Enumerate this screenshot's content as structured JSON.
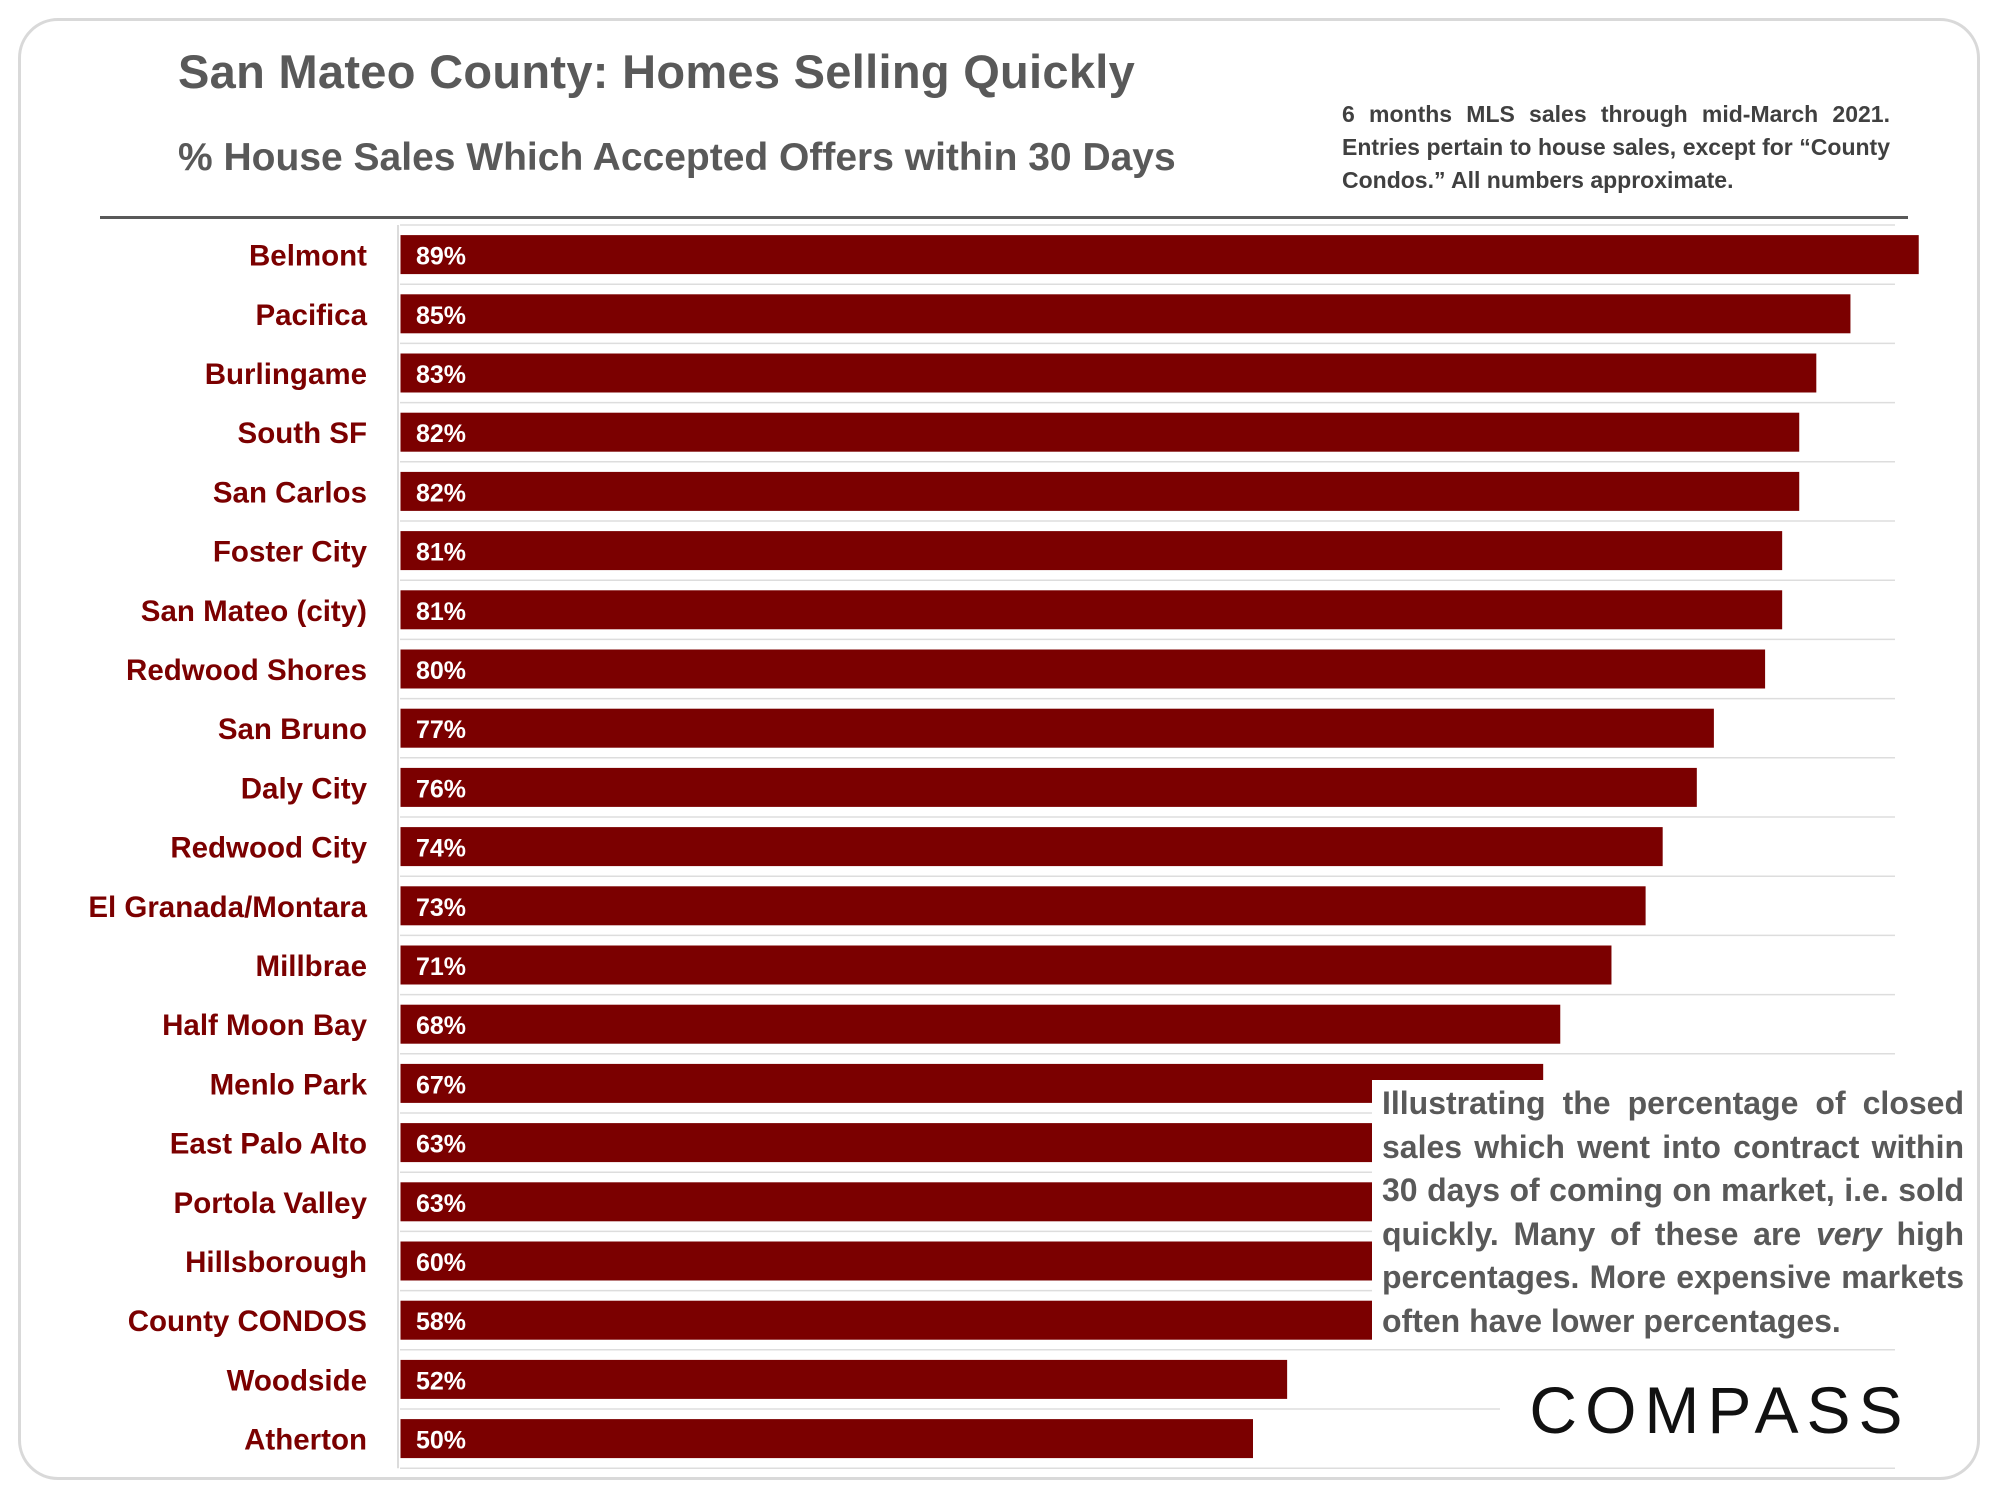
{
  "header": {
    "title": "San Mateo County: Homes Selling Quickly",
    "subtitle": "% House Sales Which Accepted Offers within 30 Days",
    "note": "6 months MLS sales through mid-March 2021. Entries pertain to house sales, except for “County Condos.” All numbers approximate."
  },
  "description": {
    "part1": "Illustrating the percentage of closed sales which went into contract within 30 days of coming on market, i.e. sold quickly. Many of these are ",
    "emphasis": "very",
    "part2": " high percentages. More expensive markets often have lower percentages."
  },
  "logo": {
    "text": "COMPASS"
  },
  "colors": {
    "bar": "#7b0000",
    "label": "#7b0000",
    "gridline": "#dddddd"
  },
  "chart_data": {
    "type": "bar",
    "orientation": "horizontal",
    "title": "San Mateo County: Homes Selling Quickly",
    "subtitle": "% House Sales Which Accepted Offers within 30 Days",
    "xlim": [
      0,
      90
    ],
    "grid": "horizontal lines between categories",
    "categories": [
      "Belmont",
      "Pacifica",
      "Burlingame",
      "South SF",
      "San Carlos",
      "Foster City",
      "San Mateo (city)",
      "Redwood Shores",
      "San Bruno",
      "Daly City",
      "Redwood City",
      "El Granada/Montara",
      "Millbrae",
      "Half Moon Bay",
      "Menlo Park",
      "East Palo Alto",
      "Portola Valley",
      "Hillsborough",
      "County CONDOS",
      "Woodside",
      "Atherton"
    ],
    "values": [
      89,
      85,
      83,
      82,
      82,
      81,
      81,
      80,
      77,
      76,
      74,
      73,
      71,
      68,
      67,
      63,
      63,
      60,
      58,
      52,
      50
    ],
    "value_labels": [
      "89%",
      "85%",
      "83%",
      "82%",
      "82%",
      "81%",
      "81%",
      "80%",
      "77%",
      "76%",
      "74%",
      "73%",
      "71%",
      "68%",
      "67%",
      "63%",
      "63%",
      "60%",
      "58%",
      "52%",
      "50%"
    ]
  }
}
